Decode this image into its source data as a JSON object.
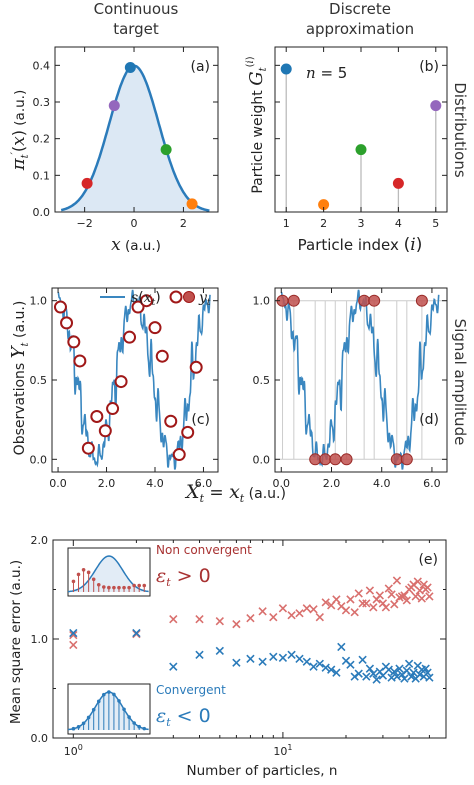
{
  "headers": {
    "left": [
      "Continuous",
      "target"
    ],
    "right": [
      "Discrete",
      "approximation"
    ]
  },
  "side_labels": {
    "row1": "Distributions",
    "row2": "Signal amplitude"
  },
  "row2_xlabel": "X_t = x_t (a.u.)",
  "chart_data": [
    {
      "id": "a",
      "type": "area",
      "panel_label": "(a)",
      "xlabel": "x (a.u.)",
      "ylabel": "π_t'(x) (a.u.)",
      "xlim": [
        -3.2,
        3.4
      ],
      "ylim": [
        0,
        0.45
      ],
      "xticks": [
        -2,
        0,
        2
      ],
      "xtick_labels": [
        "−2",
        "0",
        "2"
      ],
      "yticks": [
        0,
        0.1,
        0.2,
        0.3,
        0.4
      ],
      "ytick_labels": [
        "0.0",
        "0.1",
        "0.2",
        "0.3",
        "0.4"
      ],
      "curve": {
        "mean": 0,
        "std": 1,
        "peak": 0.399,
        "color": "#2b7bba",
        "fill": "#dce8f4"
      },
      "points": [
        {
          "x": -1.9,
          "y": 0.078,
          "color": "#d62728"
        },
        {
          "x": -0.8,
          "y": 0.29,
          "color": "#9467bd"
        },
        {
          "x": -0.15,
          "y": 0.394,
          "color": "#1f77b4"
        },
        {
          "x": 1.3,
          "y": 0.17,
          "color": "#2ca02c"
        },
        {
          "x": 2.35,
          "y": 0.022,
          "color": "#ff7f0e"
        }
      ]
    },
    {
      "id": "b",
      "type": "stem",
      "panel_label": "(b)",
      "annotation": "n = 5",
      "xlabel": "Particle index (i)",
      "ylabel": "Particle weight G_t^(i)",
      "xlim": [
        0.7,
        5.3
      ],
      "ylim": [
        0,
        0.45
      ],
      "xticks": [
        1,
        2,
        3,
        4,
        5
      ],
      "categories": [
        "1",
        "2",
        "3",
        "4",
        "5"
      ],
      "values": [
        0.39,
        0.02,
        0.17,
        0.078,
        0.29
      ],
      "colors": [
        "#1f77b4",
        "#ff7f0e",
        "#2ca02c",
        "#d62728",
        "#9467bd"
      ]
    },
    {
      "id": "c",
      "type": "line",
      "panel_label": "(c)",
      "ylabel": "Observations Y_t (a.u.)",
      "xlim": [
        -0.25,
        6.6
      ],
      "ylim": [
        -0.08,
        1.08
      ],
      "xticks": [
        0,
        2,
        4,
        6
      ],
      "xtick_labels": [
        "0.0",
        "2.0",
        "4.0",
        "6.0"
      ],
      "yticks": [
        0,
        0.5,
        1
      ],
      "ytick_labels": [
        "0.0",
        "0.5",
        "1.0"
      ],
      "legend": [
        "s(x_t)",
        "y_t"
      ],
      "line_color": "#3a87c0",
      "observations": {
        "x": [
          0.1,
          0.35,
          0.65,
          0.9,
          1.25,
          1.6,
          1.95,
          2.25,
          2.6,
          2.95,
          3.3,
          3.65,
          4.0,
          4.3,
          4.65,
          5.0,
          5.35,
          5.7
        ],
        "y": [
          0.96,
          0.86,
          0.74,
          0.62,
          0.07,
          0.27,
          0.18,
          0.32,
          0.49,
          0.77,
          0.96,
          1.0,
          0.83,
          0.65,
          0.24,
          0.03,
          0.17,
          0.58
        ],
        "color": "#a01818"
      }
    },
    {
      "id": "d",
      "type": "line",
      "panel_label": "(d)",
      "xlim": [
        -0.25,
        6.6
      ],
      "ylim": [
        -0.08,
        1.08
      ],
      "xticks": [
        0,
        2,
        4,
        6
      ],
      "xtick_labels": [
        "0.0",
        "2.0",
        "4.0",
        "6.0"
      ],
      "yticks": [
        0,
        0.5,
        1
      ],
      "ytick_labels": [
        "0.0",
        "0.5",
        "1.0"
      ],
      "line_color": "#3a87c0",
      "observations": {
        "x": [
          0.05,
          0.5,
          1.35,
          1.75,
          2.15,
          2.6,
          3.3,
          3.7,
          4.6,
          5.0,
          5.6
        ],
        "y": [
          1,
          1,
          0,
          0,
          0,
          0,
          1,
          1,
          0,
          0,
          1
        ],
        "color": "#c0504d"
      }
    },
    {
      "id": "e",
      "type": "scatter",
      "panel_label": "(e)",
      "xlabel": "Number of particles, n",
      "ylabel": "Mean square error (a.u.)",
      "xscale": "log",
      "xlim": [
        0.8,
        60
      ],
      "ylim": [
        0,
        2
      ],
      "yticks": [
        0,
        1,
        2
      ],
      "ytick_labels": [
        "0.0",
        "1.0",
        "2.0"
      ],
      "xtick_labels": [
        "10^0",
        "10^1"
      ],
      "annotations": {
        "non_convergent": "Non convergent",
        "eps_pos": "ε_t > 0",
        "convergent": "Convergent",
        "eps_neg": "ε_t < 0"
      },
      "series": [
        {
          "name": "Non convergent",
          "color": "#d9706e",
          "x": [
            1,
            1,
            2,
            3,
            4,
            5,
            6,
            7,
            8,
            9,
            10,
            11,
            12,
            13,
            14,
            15,
            16,
            17,
            18,
            19,
            20,
            21,
            22,
            23,
            24,
            25,
            26,
            27,
            28,
            29,
            30,
            31,
            32,
            33,
            34,
            35,
            36,
            37,
            38,
            39,
            40,
            41,
            42,
            43,
            44,
            45,
            46,
            47,
            48,
            49,
            50
          ],
          "y": [
            1.04,
            0.94,
            1.05,
            1.2,
            1.2,
            1.18,
            1.15,
            1.21,
            1.28,
            1.22,
            1.31,
            1.24,
            1.26,
            1.31,
            1.3,
            1.22,
            1.37,
            1.34,
            1.4,
            1.33,
            1.29,
            1.4,
            1.27,
            1.46,
            1.36,
            1.36,
            1.49,
            1.32,
            1.4,
            1.44,
            1.36,
            1.32,
            1.51,
            1.45,
            1.35,
            1.59,
            1.42,
            1.43,
            1.44,
            1.39,
            1.5,
            1.52,
            1.55,
            1.43,
            1.58,
            1.49,
            1.41,
            1.55,
            1.5,
            1.52,
            1.43
          ]
        },
        {
          "name": "Convergent",
          "color": "#2b7bba",
          "x": [
            1,
            2,
            3,
            4,
            5,
            6,
            7,
            8,
            9,
            10,
            11,
            12,
            13,
            14,
            15,
            16,
            17,
            18,
            19,
            20,
            21,
            22,
            23,
            24,
            25,
            26,
            27,
            28,
            29,
            30,
            31,
            32,
            33,
            34,
            35,
            36,
            37,
            38,
            39,
            40,
            41,
            42,
            43,
            44,
            45,
            46,
            47,
            48,
            49,
            50
          ],
          "y": [
            1.06,
            1.06,
            0.72,
            0.84,
            0.88,
            0.76,
            0.8,
            0.77,
            0.82,
            0.81,
            0.84,
            0.8,
            0.77,
            0.72,
            0.75,
            0.71,
            0.69,
            0.66,
            0.92,
            0.78,
            0.74,
            0.62,
            0.65,
            0.79,
            0.62,
            0.7,
            0.65,
            0.59,
            0.67,
            0.63,
            0.72,
            0.69,
            0.61,
            0.67,
            0.62,
            0.7,
            0.64,
            0.6,
            0.68,
            0.75,
            0.62,
            0.66,
            0.6,
            0.73,
            0.64,
            0.69,
            0.62,
            0.7,
            0.66,
            0.61
          ]
        }
      ]
    }
  ]
}
